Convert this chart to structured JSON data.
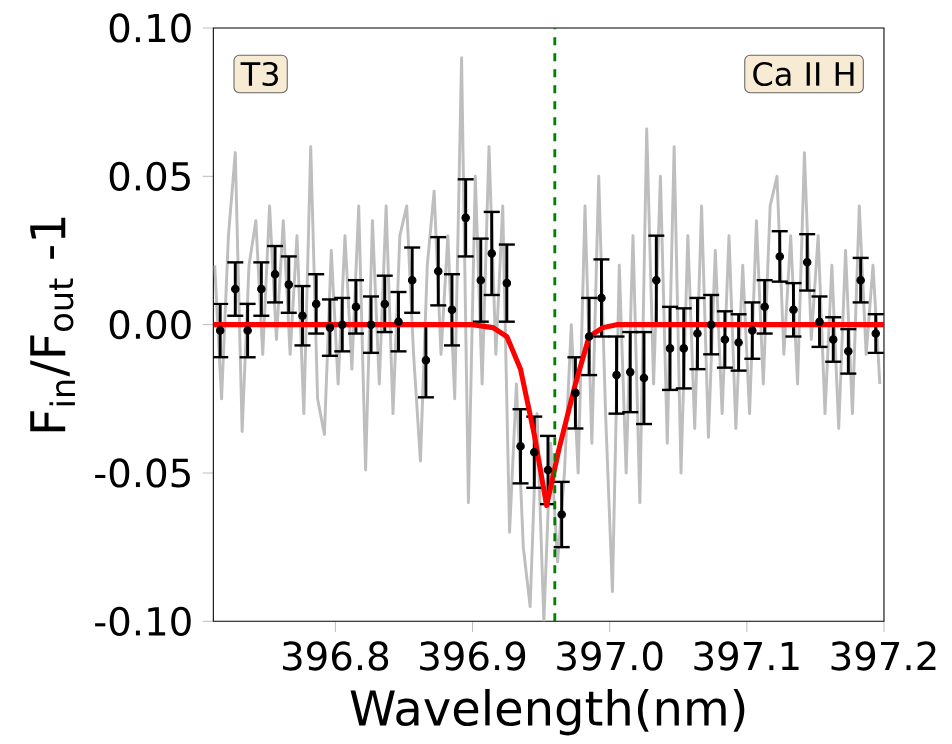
{
  "chart_data": {
    "type": "line",
    "xlabel": "Wavelength(nm)",
    "ylabel": "F$_{in}$/F$_{out}$ -1",
    "annotations": [
      "T3",
      "Ca II H"
    ],
    "xlim": [
      396.711,
      397.2
    ],
    "xticks": [
      396.8,
      396.9,
      {
        "value": 397,
        "label": "397.0"
      },
      397.1,
      397.2
    ],
    "ylim": [
      -0.1,
      0.1
    ],
    "yticks": [
      {
        "value": -0.1,
        "label": "-0.10"
      },
      {
        "value": -0.05,
        "label": "-0.05"
      },
      {
        "value": 0,
        "label": "0.00"
      },
      {
        "value": 0.05,
        "label": "0.05"
      },
      {
        "value": 0.1,
        "label": "0.10"
      }
    ],
    "grid": false,
    "ref_lines": [
      {
        "axis": "x",
        "value": 396.96,
        "color": "#008000",
        "line_style": "dashed"
      }
    ],
    "series": [
      {
        "color": "#bebebe",
        "marker": "none",
        "x": [
          396.712,
          396.717,
          396.722,
          396.727,
          396.732,
          396.737,
          396.742,
          396.747,
          396.752,
          396.757,
          396.762,
          396.767,
          396.772,
          396.777,
          396.782,
          396.787,
          396.792,
          396.797,
          396.802,
          396.807,
          396.812,
          396.817,
          396.822,
          396.827,
          396.832,
          396.837,
          396.842,
          396.847,
          396.852,
          396.857,
          396.862,
          396.867,
          396.872,
          396.877,
          396.882,
          396.887,
          396.892,
          396.897,
          396.902,
          396.907,
          396.912,
          396.917,
          396.922,
          396.927,
          396.932,
          396.937,
          396.942,
          396.947,
          396.952,
          396.957,
          396.962,
          396.967,
          396.972,
          396.977,
          396.982,
          396.987,
          396.992,
          396.997,
          397.002,
          397.007,
          397.012,
          397.017,
          397.022,
          397.027,
          397.032,
          397.037,
          397.042,
          397.047,
          397.052,
          397.057,
          397.062,
          397.067,
          397.072,
          397.077,
          397.082,
          397.087,
          397.092,
          397.097,
          397.102,
          397.107,
          397.112,
          397.117,
          397.122,
          397.127,
          397.132,
          397.137,
          397.142,
          397.147,
          397.152,
          397.157,
          397.162,
          397.167,
          397.172,
          397.177,
          397.182,
          397.187,
          397.192,
          397.197
        ],
        "values": [
          0.02,
          -0.025,
          0.03,
          0.058,
          -0.036,
          0.02,
          0.035,
          -0.01,
          0.04,
          -0.005,
          0.035,
          -0.01,
          0.03,
          -0.03,
          0.06,
          -0.025,
          -0.037,
          0.025,
          -0.02,
          0.03,
          -0.015,
          0.04,
          -0.049,
          0.035,
          -0.02,
          0.04,
          -0.03,
          0.03,
          0.04,
          -0.01,
          -0.046,
          0.02,
          0.045,
          -0.01,
          0.03,
          -0.025,
          0.09,
          -0.06,
          0.05,
          -0.02,
          0.06,
          -0.01,
          0.04,
          -0.07,
          -0.02,
          -0.075,
          -0.095,
          -0.03,
          -0.1,
          -0.04,
          -0.08,
          -0.05,
          0.0,
          -0.05,
          0.04,
          -0.04,
          0.05,
          -0.03,
          -0.09,
          0.02,
          -0.05,
          0.03,
          -0.06,
          0.066,
          -0.02,
          0.05,
          -0.04,
          0.06,
          -0.05,
          0.03,
          -0.035,
          0.04,
          -0.038,
          0.025,
          -0.03,
          0.03,
          -0.035,
          0.02,
          -0.03,
          0.035,
          -0.02,
          0.04,
          0.05,
          -0.01,
          0.03,
          -0.02,
          0.058,
          -0.005,
          0.03,
          -0.03,
          0.02,
          -0.035,
          0.025,
          -0.03,
          0.04,
          -0.01,
          0.02,
          -0.02
        ]
      },
      {
        "type": "scatter",
        "color": "#000000",
        "marker": "circle",
        "x": [
          396.716,
          396.727,
          396.736,
          396.746,
          396.756,
          396.766,
          396.776,
          396.786,
          396.796,
          396.805,
          396.815,
          396.826,
          396.836,
          396.846,
          396.856,
          396.866,
          396.875,
          396.885,
          396.895,
          396.906,
          396.914,
          396.925,
          396.935,
          396.945,
          396.955,
          396.965,
          396.975,
          396.985,
          396.994,
          397.005,
          397.015,
          397.025,
          397.034,
          397.044,
          397.054,
          397.064,
          397.074,
          397.084,
          397.094,
          397.104,
          397.113,
          397.124,
          397.134,
          397.144,
          397.153,
          397.163,
          397.174,
          397.183,
          397.194
        ],
        "values": [
          -0.002,
          0.012,
          -0.002,
          0.012,
          0.017,
          0.0135,
          0.003,
          0.007,
          -0.001,
          0.0,
          0.006,
          0.0,
          0.007,
          0.001,
          0.015,
          -0.012,
          0.018,
          0.005,
          0.036,
          0.015,
          0.024,
          0.014,
          -0.041,
          -0.043,
          -0.049,
          -0.064,
          -0.023,
          -0.004,
          0.009,
          -0.017,
          -0.016,
          -0.018,
          0.015,
          -0.008,
          -0.008,
          -0.003,
          0.0,
          -0.005,
          -0.006,
          -0.002,
          0.006,
          0.023,
          0.005,
          0.021,
          0.001,
          -0.005,
          -0.009,
          0.015,
          -0.003
        ],
        "errors": [
          0.009,
          0.009,
          0.009,
          0.009,
          0.0095,
          0.0095,
          0.01,
          0.01,
          0.0095,
          0.009,
          0.009,
          0.0095,
          0.0095,
          0.01,
          0.011,
          0.0125,
          0.0115,
          0.012,
          0.013,
          0.014,
          0.014,
          0.013,
          0.0125,
          0.012,
          0.0115,
          0.011,
          0.012,
          0.013,
          0.013,
          0.013,
          0.0135,
          0.0155,
          0.015,
          0.014,
          0.0135,
          0.012,
          0.01,
          0.0095,
          0.0095,
          0.0095,
          0.009,
          0.0085,
          0.009,
          0.0095,
          0.0085,
          0.0075,
          0.0075,
          0.0075,
          0.0065
        ]
      },
      {
        "color": "#ff0000",
        "marker": "none",
        "x": [
          396.711,
          396.9,
          396.915,
          396.925,
          396.935,
          396.945,
          396.954,
          396.963,
          396.975,
          396.985,
          396.995,
          397.005,
          397.2
        ],
        "values": [
          0,
          0,
          -0.001,
          -0.004,
          -0.015,
          -0.037,
          -0.061,
          -0.042,
          -0.02,
          -0.004,
          -0.001,
          0,
          0
        ]
      }
    ]
  }
}
